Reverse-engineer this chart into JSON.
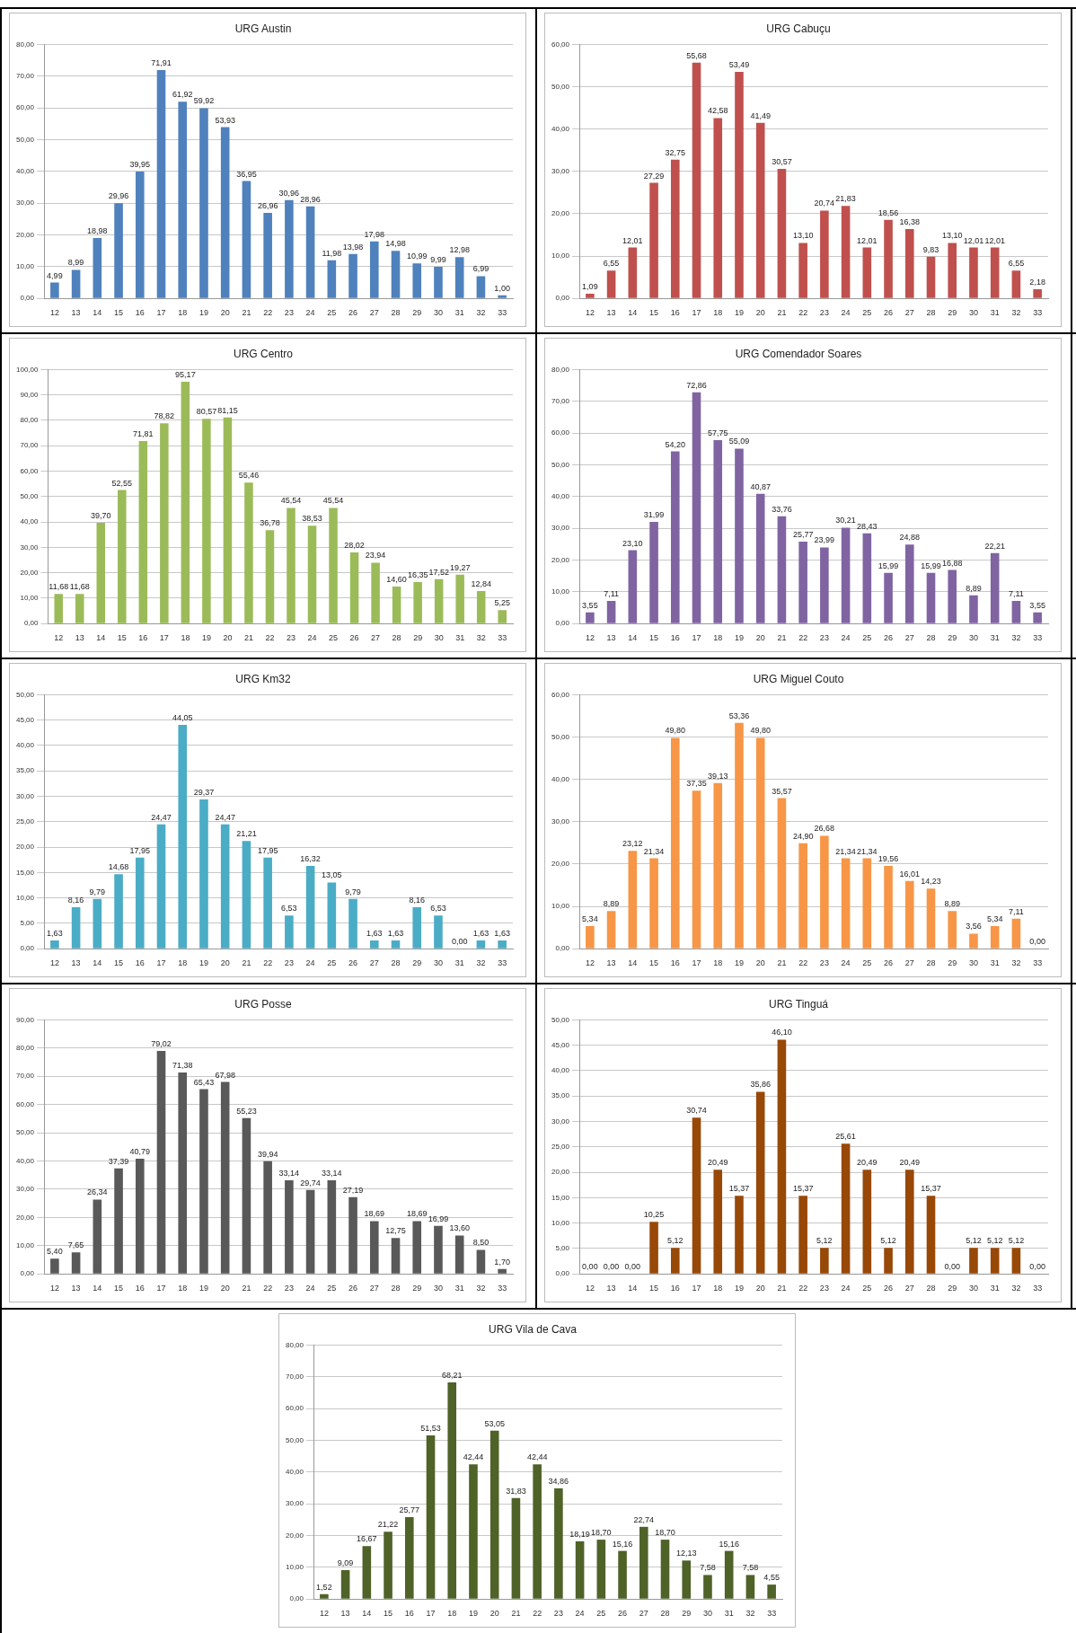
{
  "chart_data": [
    {
      "type": "bar",
      "title": "URG Austin",
      "categories": [
        "12",
        "13",
        "14",
        "15",
        "16",
        "17",
        "18",
        "19",
        "20",
        "21",
        "22",
        "23",
        "24",
        "25",
        "26",
        "27",
        "28",
        "29",
        "30",
        "31",
        "32",
        "33"
      ],
      "color": "#4f81bd",
      "grid": "y",
      "ylim": [
        0,
        80
      ],
      "yticks": [
        {
          "value": 0,
          "label": "0,00"
        },
        {
          "value": 10,
          "label": "10,00"
        },
        {
          "value": 20,
          "label": "20,00"
        },
        {
          "value": 30,
          "label": "30,00"
        },
        {
          "value": 40,
          "label": "40,00"
        },
        {
          "value": 50,
          "label": "50,00"
        },
        {
          "value": 60,
          "label": "60,00"
        },
        {
          "value": 70,
          "label": "70,00"
        },
        {
          "value": 80,
          "label": "80,00"
        }
      ],
      "values": [
        4.99,
        8.99,
        18.98,
        29.96,
        39.95,
        71.91,
        61.92,
        59.92,
        53.93,
        36.95,
        26.96,
        30.96,
        28.96,
        11.98,
        13.98,
        17.98,
        14.98,
        10.99,
        9.99,
        12.98,
        6.99,
        1.0
      ],
      "value_labels": [
        "4,99",
        "8,99",
        "18,98",
        "29,96",
        "39,95",
        "71,91",
        "61,92",
        "59,92",
        "53,93",
        "36,95",
        "26,96",
        "30,96",
        "28,96",
        "11,98",
        "13,98",
        "17,98",
        "14,98",
        "10,99",
        "9,99",
        "12,98",
        "6,99",
        "1,00"
      ]
    },
    {
      "type": "bar",
      "title": "URG Cabuçu",
      "categories": [
        "12",
        "13",
        "14",
        "15",
        "16",
        "17",
        "18",
        "19",
        "20",
        "21",
        "22",
        "23",
        "24",
        "25",
        "26",
        "27",
        "28",
        "29",
        "30",
        "31",
        "32",
        "33"
      ],
      "color": "#c0504d",
      "grid": "y",
      "ylim": [
        0,
        60
      ],
      "yticks": [
        {
          "value": 0,
          "label": "0,00"
        },
        {
          "value": 10,
          "label": "10,00"
        },
        {
          "value": 20,
          "label": "20,00"
        },
        {
          "value": 30,
          "label": "30,00"
        },
        {
          "value": 40,
          "label": "40,00"
        },
        {
          "value": 50,
          "label": "50,00"
        },
        {
          "value": 60,
          "label": "60,00"
        }
      ],
      "values": [
        1.09,
        6.55,
        12.01,
        27.29,
        32.75,
        55.68,
        42.58,
        53.49,
        41.49,
        30.57,
        13.1,
        20.74,
        21.83,
        12.01,
        18.56,
        16.38,
        9.83,
        13.1,
        12.01,
        12.01,
        6.55,
        2.18
      ],
      "value_labels": [
        "1,09",
        "6,55",
        "12,01",
        "27,29",
        "32,75",
        "55,68",
        "42,58",
        "53,49",
        "41,49",
        "30,57",
        "13,10",
        "20,74",
        "21,83",
        "12,01",
        "18,56",
        "16,38",
        "9,83",
        "13,10",
        "12,01",
        "12,01",
        "6,55",
        "2,18"
      ]
    },
    {
      "type": "bar",
      "title": "URG Centro",
      "categories": [
        "12",
        "13",
        "14",
        "15",
        "16",
        "17",
        "18",
        "19",
        "20",
        "21",
        "22",
        "23",
        "24",
        "25",
        "26",
        "27",
        "28",
        "29",
        "30",
        "31",
        "32",
        "33"
      ],
      "color": "#9bbb59",
      "grid": "y",
      "ylim": [
        0,
        100
      ],
      "yticks": [
        {
          "value": 0,
          "label": "0,00"
        },
        {
          "value": 10,
          "label": "10,00"
        },
        {
          "value": 20,
          "label": "20,00"
        },
        {
          "value": 30,
          "label": "30,00"
        },
        {
          "value": 40,
          "label": "40,00"
        },
        {
          "value": 50,
          "label": "50,00"
        },
        {
          "value": 60,
          "label": "60,00"
        },
        {
          "value": 70,
          "label": "70,00"
        },
        {
          "value": 80,
          "label": "80,00"
        },
        {
          "value": 90,
          "label": "90,00"
        },
        {
          "value": 100,
          "label": "100,00"
        }
      ],
      "values": [
        11.68,
        11.68,
        39.7,
        52.55,
        71.81,
        78.82,
        95.17,
        80.57,
        81.15,
        55.46,
        36.78,
        45.54,
        38.53,
        45.54,
        28.02,
        23.94,
        14.6,
        16.35,
        17.52,
        19.27,
        12.84,
        5.25
      ],
      "value_labels": [
        "11,68",
        "11,68",
        "39,70",
        "52,55",
        "71,81",
        "78,82",
        "95,17",
        "80,57",
        "81,15",
        "55,46",
        "36,78",
        "45,54",
        "38,53",
        "45,54",
        "28,02",
        "23,94",
        "14,60",
        "16,35",
        "17,52",
        "19,27",
        "12,84",
        "5,25"
      ]
    },
    {
      "type": "bar",
      "title": "URG Comendador Soares",
      "categories": [
        "12",
        "13",
        "14",
        "15",
        "16",
        "17",
        "18",
        "19",
        "20",
        "21",
        "22",
        "23",
        "24",
        "25",
        "26",
        "27",
        "28",
        "29",
        "30",
        "31",
        "32",
        "33"
      ],
      "color": "#8064a2",
      "grid": "y",
      "ylim": [
        0,
        80
      ],
      "yticks": [
        {
          "value": 0,
          "label": "0,00"
        },
        {
          "value": 10,
          "label": "10,00"
        },
        {
          "value": 20,
          "label": "20,00"
        },
        {
          "value": 30,
          "label": "30,00"
        },
        {
          "value": 40,
          "label": "40,00"
        },
        {
          "value": 50,
          "label": "50,00"
        },
        {
          "value": 60,
          "label": "60,00"
        },
        {
          "value": 70,
          "label": "70,00"
        },
        {
          "value": 80,
          "label": "80,00"
        }
      ],
      "values": [
        3.55,
        7.11,
        23.1,
        31.99,
        54.2,
        72.86,
        57.75,
        55.09,
        40.87,
        33.76,
        25.77,
        23.99,
        30.21,
        28.43,
        15.99,
        24.88,
        15.99,
        16.88,
        8.89,
        22.21,
        7.11,
        3.55
      ],
      "value_labels": [
        "3,55",
        "7,11",
        "23,10",
        "31,99",
        "54,20",
        "72,86",
        "57,75",
        "55,09",
        "40,87",
        "33,76",
        "25,77",
        "23,99",
        "30,21",
        "28,43",
        "15,99",
        "24,88",
        "15,99",
        "16,88",
        "8,89",
        "22,21",
        "7,11",
        "3,55"
      ]
    },
    {
      "type": "bar",
      "title": "URG Km32",
      "categories": [
        "12",
        "13",
        "14",
        "15",
        "16",
        "17",
        "18",
        "19",
        "20",
        "21",
        "22",
        "23",
        "24",
        "25",
        "26",
        "27",
        "28",
        "29",
        "30",
        "31",
        "32",
        "33"
      ],
      "color": "#4bacc6",
      "grid": "y",
      "ylim": [
        0,
        50
      ],
      "yticks": [
        {
          "value": 0,
          "label": "0,00"
        },
        {
          "value": 5,
          "label": "5,00"
        },
        {
          "value": 10,
          "label": "10,00"
        },
        {
          "value": 15,
          "label": "15,00"
        },
        {
          "value": 20,
          "label": "20,00"
        },
        {
          "value": 25,
          "label": "25,00"
        },
        {
          "value": 30,
          "label": "30,00"
        },
        {
          "value": 35,
          "label": "35,00"
        },
        {
          "value": 40,
          "label": "40,00"
        },
        {
          "value": 45,
          "label": "45,00"
        },
        {
          "value": 50,
          "label": "50,00"
        }
      ],
      "values": [
        1.63,
        8.16,
        9.79,
        14.68,
        17.95,
        24.47,
        44.05,
        29.37,
        24.47,
        21.21,
        17.95,
        6.53,
        16.32,
        13.05,
        9.79,
        1.63,
        1.63,
        8.16,
        6.53,
        0.0,
        1.63,
        1.63
      ],
      "value_labels": [
        "1,63",
        "8,16",
        "9,79",
        "14,68",
        "17,95",
        "24,47",
        "44,05",
        "29,37",
        "24,47",
        "21,21",
        "17,95",
        "6,53",
        "16,32",
        "13,05",
        "9,79",
        "1,63",
        "1,63",
        "8,16",
        "6,53",
        "0,00",
        "1,63",
        "1,63"
      ]
    },
    {
      "type": "bar",
      "title": "URG Miguel Couto",
      "categories": [
        "12",
        "13",
        "14",
        "15",
        "16",
        "17",
        "18",
        "19",
        "20",
        "21",
        "22",
        "23",
        "24",
        "25",
        "26",
        "27",
        "28",
        "29",
        "30",
        "31",
        "32",
        "33"
      ],
      "color": "#f79646",
      "grid": "y",
      "ylim": [
        0,
        60
      ],
      "yticks": [
        {
          "value": 0,
          "label": "0,00"
        },
        {
          "value": 10,
          "label": "10,00"
        },
        {
          "value": 20,
          "label": "20,00"
        },
        {
          "value": 30,
          "label": "30,00"
        },
        {
          "value": 40,
          "label": "40,00"
        },
        {
          "value": 50,
          "label": "50,00"
        },
        {
          "value": 60,
          "label": "60,00"
        }
      ],
      "values": [
        5.34,
        8.89,
        23.12,
        21.34,
        49.8,
        37.35,
        39.13,
        53.36,
        49.8,
        35.57,
        24.9,
        26.68,
        21.34,
        21.34,
        19.56,
        16.01,
        14.23,
        8.89,
        3.56,
        5.34,
        7.11,
        0.0
      ],
      "value_labels": [
        "5,34",
        "8,89",
        "23,12",
        "21,34",
        "49,80",
        "37,35",
        "39,13",
        "53,36",
        "49,80",
        "35,57",
        "24,90",
        "26,68",
        "21,34",
        "21,34",
        "19,56",
        "16,01",
        "14,23",
        "8,89",
        "3,56",
        "5,34",
        "7,11",
        "0,00"
      ]
    },
    {
      "type": "bar",
      "title": "URG Posse",
      "categories": [
        "12",
        "13",
        "14",
        "15",
        "16",
        "17",
        "18",
        "19",
        "20",
        "21",
        "22",
        "23",
        "24",
        "25",
        "26",
        "27",
        "28",
        "29",
        "30",
        "31",
        "32",
        "33"
      ],
      "color": "#595959",
      "grid": "y",
      "ylim": [
        0,
        90
      ],
      "yticks": [
        {
          "value": 0,
          "label": "0,00"
        },
        {
          "value": 10,
          "label": "10,00"
        },
        {
          "value": 20,
          "label": "20,00"
        },
        {
          "value": 30,
          "label": "30,00"
        },
        {
          "value": 40,
          "label": "40,00"
        },
        {
          "value": 50,
          "label": "50,00"
        },
        {
          "value": 60,
          "label": "60,00"
        },
        {
          "value": 70,
          "label": "70,00"
        },
        {
          "value": 80,
          "label": "80,00"
        },
        {
          "value": 90,
          "label": "90,00"
        }
      ],
      "values": [
        5.4,
        7.65,
        26.34,
        37.39,
        40.79,
        79.02,
        71.38,
        65.43,
        67.98,
        55.23,
        39.94,
        33.14,
        29.74,
        33.14,
        27.19,
        18.69,
        12.75,
        18.69,
        16.99,
        13.6,
        8.5,
        1.7
      ],
      "value_labels": [
        "5,40",
        "7,65",
        "26,34",
        "37,39",
        "40,79",
        "79,02",
        "71,38",
        "65,43",
        "67,98",
        "55,23",
        "39,94",
        "33,14",
        "29,74",
        "33,14",
        "27,19",
        "18,69",
        "12,75",
        "18,69",
        "16,99",
        "13,60",
        "8,50",
        "1,70"
      ]
    },
    {
      "type": "bar",
      "title": "URG Tinguá",
      "categories": [
        "12",
        "13",
        "14",
        "15",
        "16",
        "17",
        "18",
        "19",
        "20",
        "21",
        "22",
        "23",
        "24",
        "25",
        "26",
        "27",
        "28",
        "29",
        "30",
        "31",
        "32",
        "33"
      ],
      "color": "#984807",
      "grid": "y",
      "ylim": [
        0,
        50
      ],
      "yticks": [
        {
          "value": 0,
          "label": "0,00"
        },
        {
          "value": 5,
          "label": "5,00"
        },
        {
          "value": 10,
          "label": "10,00"
        },
        {
          "value": 15,
          "label": "15,00"
        },
        {
          "value": 20,
          "label": "20,00"
        },
        {
          "value": 25,
          "label": "25,00"
        },
        {
          "value": 30,
          "label": "30,00"
        },
        {
          "value": 35,
          "label": "35,00"
        },
        {
          "value": 40,
          "label": "40,00"
        },
        {
          "value": 45,
          "label": "45,00"
        },
        {
          "value": 50,
          "label": "50,00"
        }
      ],
      "values": [
        0.0,
        0.0,
        0.0,
        10.25,
        5.12,
        30.74,
        20.49,
        15.37,
        35.86,
        46.1,
        15.37,
        5.12,
        25.61,
        20.49,
        5.12,
        20.49,
        15.37,
        0.0,
        5.12,
        5.12,
        5.12,
        0.0
      ],
      "value_labels": [
        "0,00",
        "0,00",
        "0,00",
        "10,25",
        "5,12",
        "30,74",
        "20,49",
        "15,37",
        "35,86",
        "46,10",
        "15,37",
        "5,12",
        "25,61",
        "20,49",
        "5,12",
        "20,49",
        "15,37",
        "0,00",
        "5,12",
        "5,12",
        "5,12",
        "0,00"
      ]
    },
    {
      "type": "bar",
      "title": "URG Vila de Cava",
      "categories": [
        "12",
        "13",
        "14",
        "15",
        "16",
        "17",
        "18",
        "19",
        "20",
        "21",
        "22",
        "23",
        "24",
        "25",
        "26",
        "27",
        "28",
        "29",
        "30",
        "31",
        "32",
        "33"
      ],
      "color": "#4f6228",
      "grid": "y",
      "ylim": [
        0,
        80
      ],
      "yticks": [
        {
          "value": 0,
          "label": "0,00"
        },
        {
          "value": 10,
          "label": "10,00"
        },
        {
          "value": 20,
          "label": "20,00"
        },
        {
          "value": 30,
          "label": "30,00"
        },
        {
          "value": 40,
          "label": "40,00"
        },
        {
          "value": 50,
          "label": "50,00"
        },
        {
          "value": 60,
          "label": "60,00"
        },
        {
          "value": 70,
          "label": "70,00"
        },
        {
          "value": 80,
          "label": "80,00"
        }
      ],
      "values": [
        1.52,
        9.09,
        16.67,
        21.22,
        25.77,
        51.53,
        68.21,
        42.44,
        53.05,
        31.83,
        42.44,
        34.86,
        18.19,
        18.7,
        15.16,
        22.74,
        18.7,
        12.13,
        7.58,
        15.16,
        7.58,
        4.55
      ],
      "value_labels": [
        "1,52",
        "9,09",
        "16,67",
        "21,22",
        "25,77",
        "51,53",
        "68,21",
        "42,44",
        "53,05",
        "31,83",
        "42,44",
        "34,86",
        "18,19",
        "18,70",
        "15,16",
        "22,74",
        "18,70",
        "12,13",
        "7,58",
        "15,16",
        "7,58",
        "4,55"
      ]
    }
  ]
}
